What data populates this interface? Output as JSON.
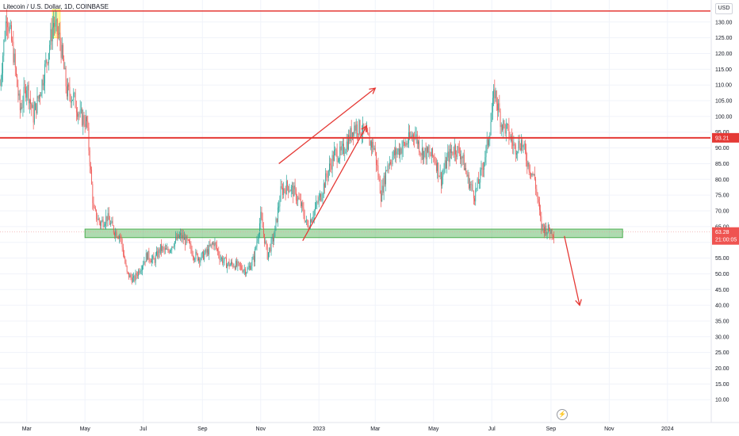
{
  "header": {
    "symbol_title": "Litecoin / U.S. Dollar, 1D, COINBASE",
    "currency": "USD"
  },
  "tv_logo_icon": "lightning-bolt-icon",
  "chart_data": {
    "type": "candlestick",
    "title": "Litecoin / U.S. Dollar, 1D, COINBASE",
    "x_ticks": [
      "Mar",
      "May",
      "Jul",
      "Sep",
      "Nov",
      "2023",
      "Mar",
      "May",
      "Jul",
      "Sep",
      "Nov",
      "2024"
    ],
    "y_ticks": [
      10,
      15,
      20,
      25,
      30,
      35,
      40,
      45,
      50,
      55,
      60,
      65,
      70,
      75,
      80,
      85,
      90,
      95,
      100,
      105,
      110,
      115,
      120,
      125,
      130
    ],
    "y_tick_labels": [
      "10.00",
      "15.00",
      "20.00",
      "25.00",
      "30.00",
      "35.00",
      "40.00",
      "45.00",
      "50.00",
      "55.00",
      "60.00",
      "65.00",
      "70.00",
      "75.00",
      "80.00",
      "85.00",
      "90.00",
      "95.00",
      "100.00",
      "105.00",
      "110.00",
      "115.00",
      "120.00",
      "125.00",
      "130.00"
    ],
    "ylim": [
      3,
      137
    ],
    "xlim": [
      "2022-02-01",
      "2024-02-15"
    ],
    "current_price": 63.28,
    "current_price_label": "63.28",
    "countdown_label": "21:00:05",
    "resistance_price": 93.21,
    "resistance_label": "93.21",
    "top_line_price": 133.5,
    "support_zone": {
      "from": "2022-05-01",
      "to": "2023-11-15",
      "low": 61.5,
      "high": 64.2
    },
    "highlight_box": {
      "from": "2022-03-28",
      "to": "2022-04-05",
      "low": 125,
      "high": 134
    },
    "trend_arrows": [
      {
        "from": [
          "2022-11-20",
          85
        ],
        "to": [
          "2023-03-01",
          109
        ]
      },
      {
        "from": [
          "2022-12-15",
          60.5
        ],
        "to": [
          "2023-02-20",
          97
        ]
      },
      {
        "from": [
          "2023-09-15",
          62
        ],
        "to": [
          "2023-10-01",
          40
        ]
      }
    ],
    "price_path": [
      [
        "2022-02-01",
        110
      ],
      [
        "2022-02-08",
        133
      ],
      [
        "2022-02-15",
        120
      ],
      [
        "2022-02-22",
        102
      ],
      [
        "2022-03-01",
        110
      ],
      [
        "2022-03-08",
        100
      ],
      [
        "2022-03-15",
        108
      ],
      [
        "2022-03-22",
        118
      ],
      [
        "2022-03-29",
        130
      ],
      [
        "2022-04-05",
        124
      ],
      [
        "2022-04-12",
        108
      ],
      [
        "2022-04-19",
        106
      ],
      [
        "2022-04-26",
        100
      ],
      [
        "2022-05-03",
        98
      ],
      [
        "2022-05-10",
        70
      ],
      [
        "2022-05-17",
        66
      ],
      [
        "2022-05-24",
        68
      ],
      [
        "2022-05-31",
        64
      ],
      [
        "2022-06-07",
        62
      ],
      [
        "2022-06-14",
        50
      ],
      [
        "2022-06-21",
        48
      ],
      [
        "2022-06-28",
        52
      ],
      [
        "2022-07-05",
        56
      ],
      [
        "2022-07-12",
        54
      ],
      [
        "2022-07-19",
        58
      ],
      [
        "2022-07-26",
        57
      ],
      [
        "2022-08-02",
        60
      ],
      [
        "2022-08-09",
        62
      ],
      [
        "2022-08-16",
        60
      ],
      [
        "2022-08-23",
        56
      ],
      [
        "2022-08-30",
        55
      ],
      [
        "2022-09-06",
        57
      ],
      [
        "2022-09-13",
        60
      ],
      [
        "2022-09-20",
        55
      ],
      [
        "2022-09-27",
        53
      ],
      [
        "2022-10-04",
        53
      ],
      [
        "2022-10-11",
        52
      ],
      [
        "2022-10-18",
        51
      ],
      [
        "2022-10-25",
        55
      ],
      [
        "2022-11-01",
        68
      ],
      [
        "2022-11-08",
        56
      ],
      [
        "2022-11-15",
        62
      ],
      [
        "2022-11-22",
        76
      ],
      [
        "2022-11-29",
        78
      ],
      [
        "2022-12-06",
        76
      ],
      [
        "2022-12-13",
        72
      ],
      [
        "2022-12-20",
        65
      ],
      [
        "2022-12-27",
        70
      ],
      [
        "2023-01-03",
        75
      ],
      [
        "2023-01-10",
        82
      ],
      [
        "2023-01-17",
        88
      ],
      [
        "2023-01-24",
        88
      ],
      [
        "2023-01-31",
        92
      ],
      [
        "2023-02-07",
        97
      ],
      [
        "2023-02-14",
        96
      ],
      [
        "2023-02-21",
        93
      ],
      [
        "2023-02-28",
        90
      ],
      [
        "2023-03-07",
        75
      ],
      [
        "2023-03-14",
        85
      ],
      [
        "2023-03-21",
        88
      ],
      [
        "2023-03-28",
        90
      ],
      [
        "2023-04-04",
        92
      ],
      [
        "2023-04-11",
        95
      ],
      [
        "2023-04-18",
        89
      ],
      [
        "2023-04-25",
        88
      ],
      [
        "2023-05-02",
        87
      ],
      [
        "2023-05-09",
        80
      ],
      [
        "2023-05-16",
        87
      ],
      [
        "2023-05-23",
        90
      ],
      [
        "2023-05-30",
        88
      ],
      [
        "2023-06-06",
        80
      ],
      [
        "2023-06-13",
        75
      ],
      [
        "2023-06-20",
        82
      ],
      [
        "2023-06-27",
        92
      ],
      [
        "2023-07-04",
        108
      ],
      [
        "2023-07-11",
        98
      ],
      [
        "2023-07-18",
        95
      ],
      [
        "2023-07-25",
        90
      ],
      [
        "2023-08-01",
        92
      ],
      [
        "2023-08-08",
        85
      ],
      [
        "2023-08-15",
        80
      ],
      [
        "2023-08-22",
        65
      ],
      [
        "2023-08-29",
        64
      ],
      [
        "2023-09-04",
        63.28
      ]
    ]
  }
}
